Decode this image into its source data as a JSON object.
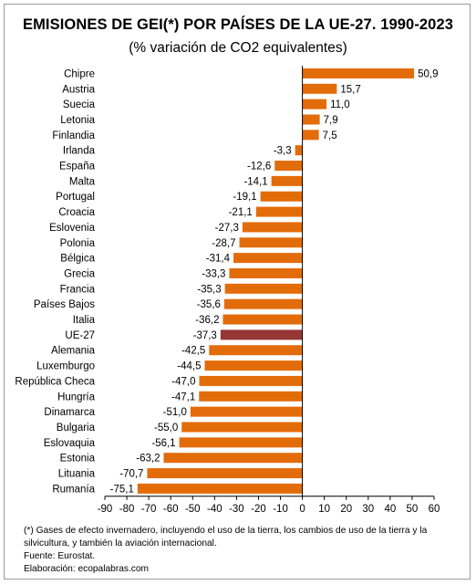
{
  "chart_data": {
    "type": "bar",
    "orientation": "horizontal",
    "title": "EMISIONES DE GEI(*) POR PAÍSES DE LA UE-27. 1990-2023",
    "subtitle": "(% variación de CO2 equivalentes)",
    "categories": [
      "Chipre",
      "Austria",
      "Suecia",
      "Letonia",
      "Finlandia",
      "Irlanda",
      "España",
      "Malta",
      "Portugal",
      "Croacia",
      "Eslovenia",
      "Polonia",
      "Bélgica",
      "Grecia",
      "Francia",
      "Países Bajos",
      "Italia",
      "UE-27",
      "Alemania",
      "Luxemburgo",
      "República Checa",
      "Hungría",
      "Dinamarca",
      "Bulgaria",
      "Eslovaquia",
      "Estonia",
      "Lituania",
      "Rumanía"
    ],
    "values": [
      50.9,
      15.7,
      11.0,
      7.9,
      7.5,
      -3.3,
      -12.6,
      -14.1,
      -19.1,
      -21.1,
      -27.3,
      -28.7,
      -31.4,
      -33.3,
      -35.3,
      -35.6,
      -36.2,
      -37.3,
      -42.5,
      -44.5,
      -47.0,
      -47.1,
      -51.0,
      -55.0,
      -56.1,
      -63.2,
      -70.7,
      -75.1
    ],
    "value_labels": [
      "50,9",
      "15,7",
      "11,0",
      "7,9",
      "7,5",
      "-3,3",
      "-12,6",
      "-14,1",
      "-19,1",
      "-21,1",
      "-27,3",
      "-28,7",
      "-31,4",
      "-33,3",
      "-35,3",
      "-35,6",
      "-36,2",
      "-37,3",
      "-42,5",
      "-44,5",
      "-47,0",
      "-47,1",
      "-51,0",
      "-55,0",
      "-56,1",
      "-63,2",
      "-70,7",
      "-75,1"
    ],
    "highlight_category": "UE-27",
    "xlim": [
      -90,
      60
    ],
    "xticks": [
      -90,
      -80,
      -70,
      -60,
      -50,
      -40,
      -30,
      -20,
      -10,
      0,
      10,
      20,
      30,
      40,
      50,
      60
    ],
    "xtick_labels": [
      "-90",
      "-80",
      "-70",
      "-60",
      "-50",
      "-40",
      "-30",
      "-20",
      "-10",
      "0",
      "10",
      "20",
      "30",
      "40",
      "50",
      "60"
    ],
    "grid": false,
    "colors": {
      "bar": "#e36c0a",
      "highlight": "#953735",
      "axis": "#000000"
    }
  },
  "notes": {
    "footnote": "(*) Gases de efecto invernadero, incluyendo el uso de la tierra, los cambios de uso de la tierra y la silvicultura, y también la aviación internacional.",
    "source": "Fuente: Eurostat.",
    "credit": "Elaboración: ecopalabras.com"
  }
}
